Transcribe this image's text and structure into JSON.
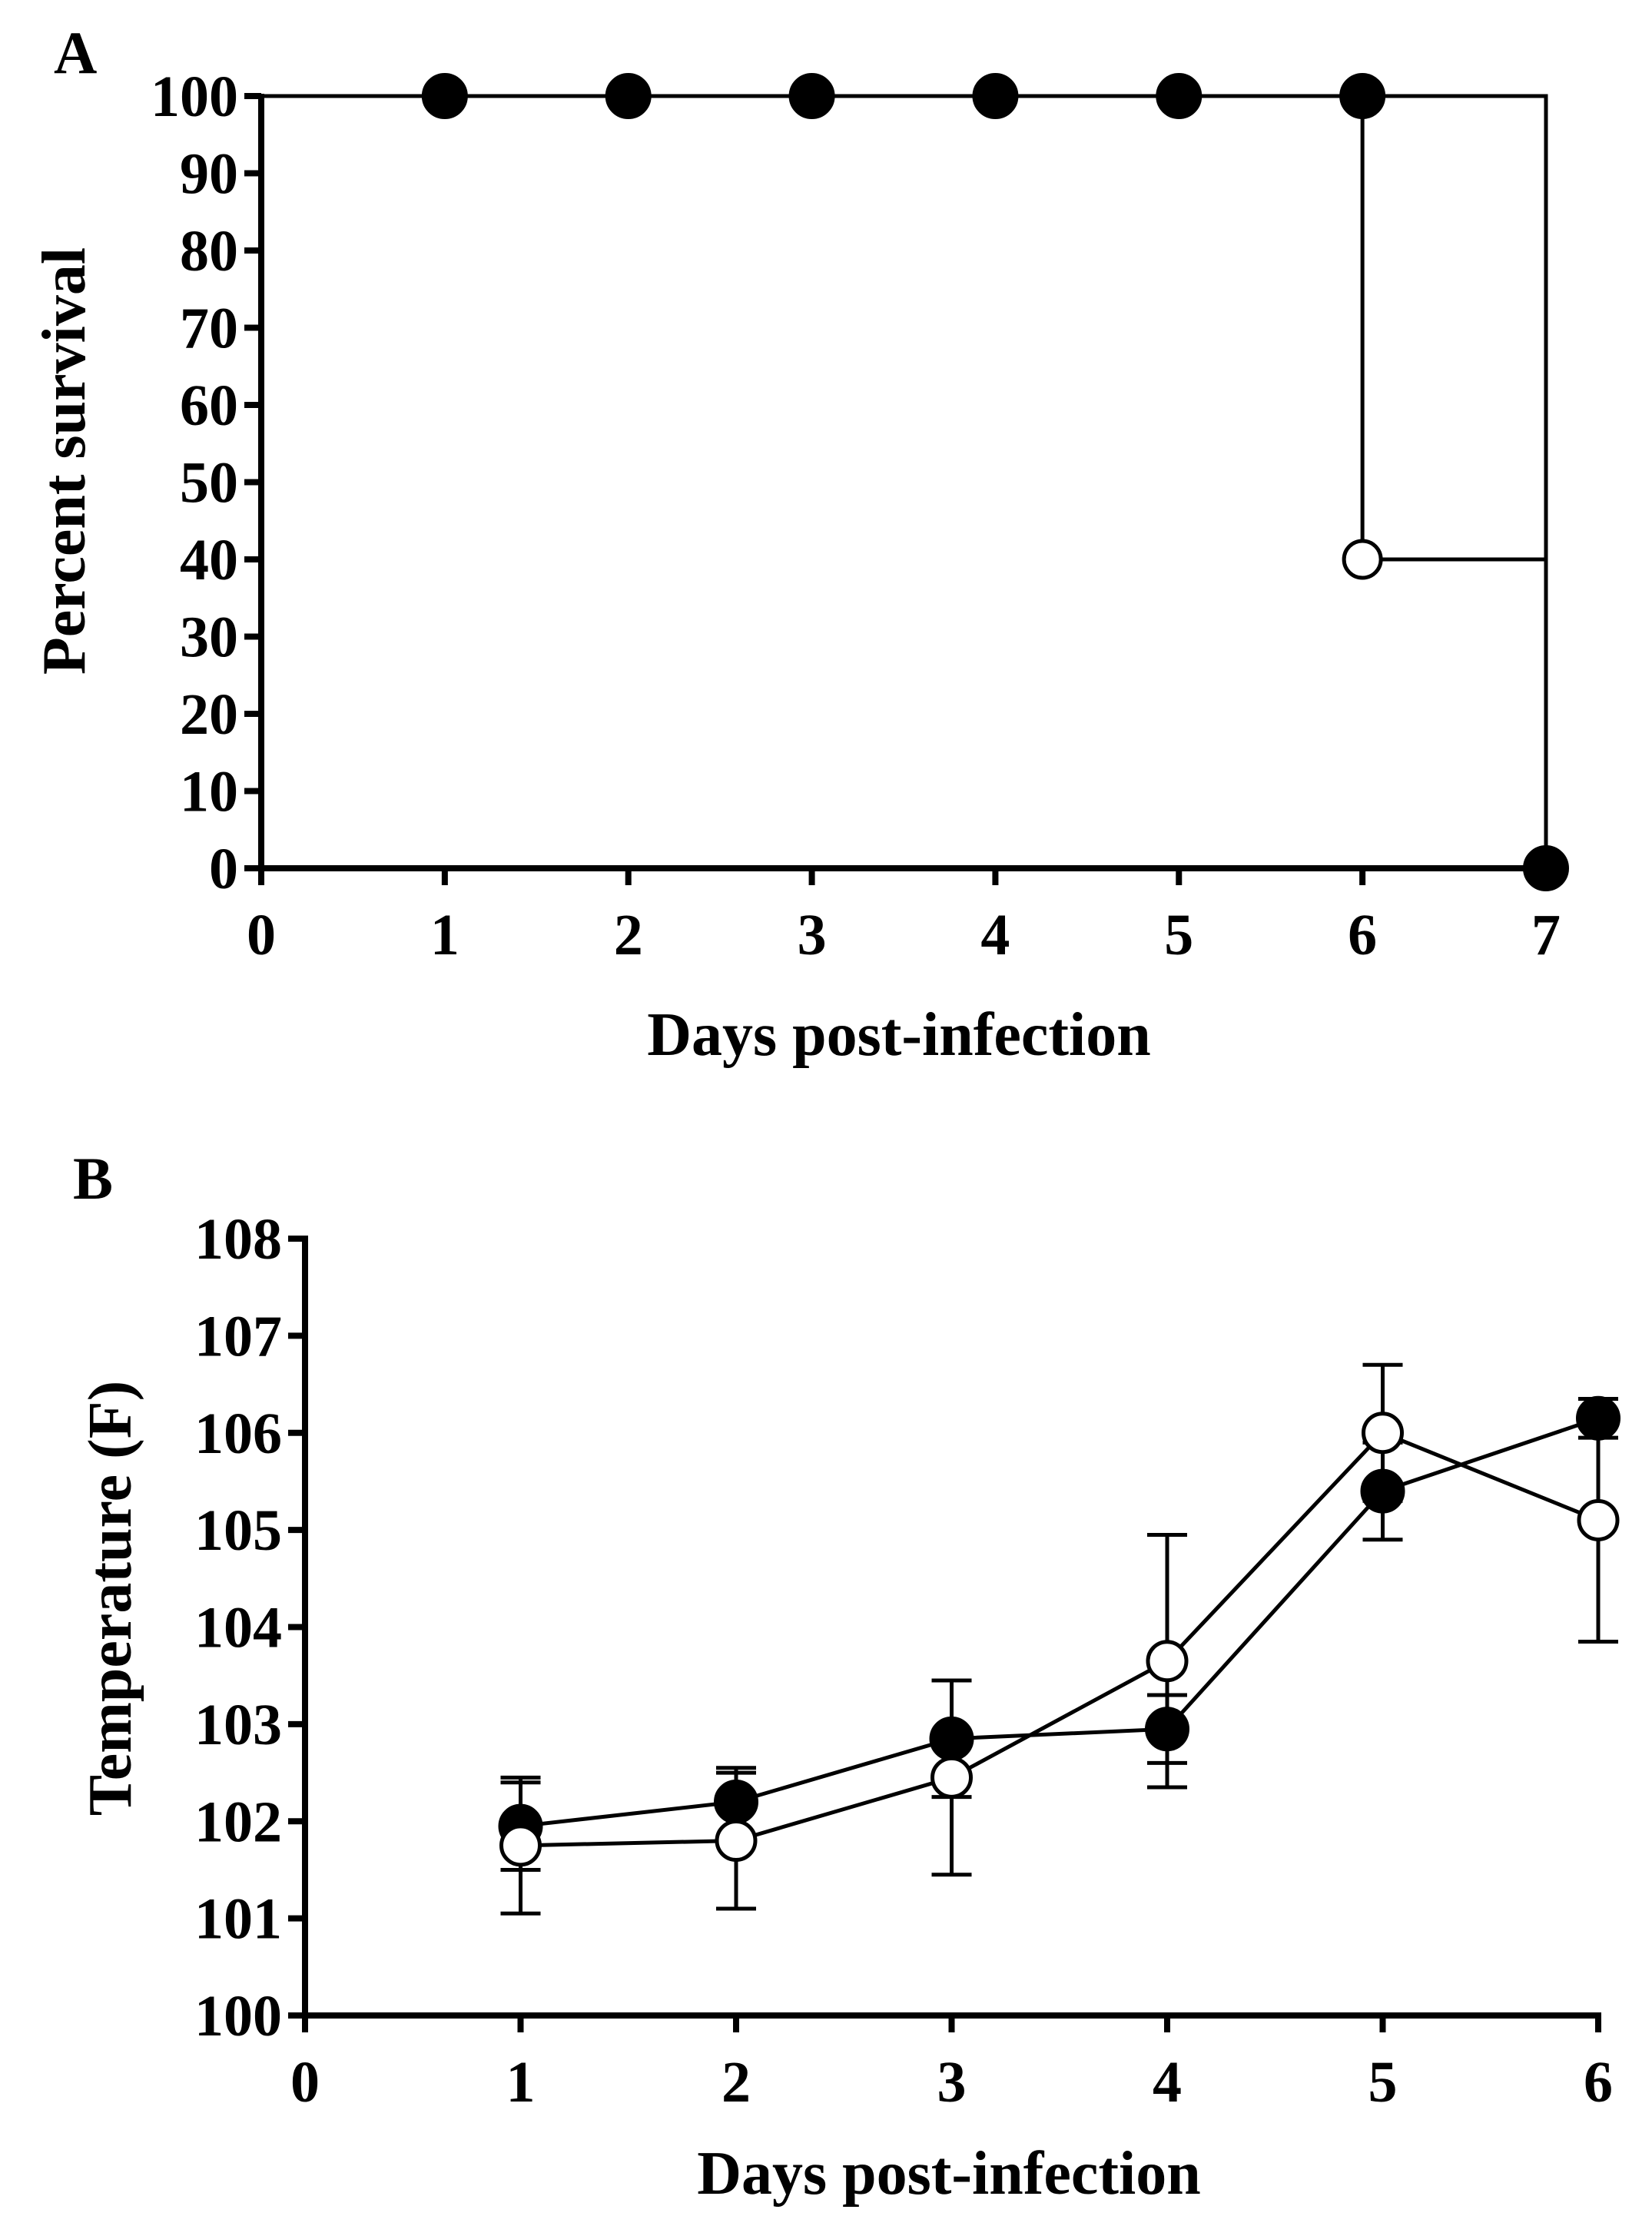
{
  "chart_data": [
    {
      "type": "line",
      "subtype": "survival-step",
      "panel_label": "A",
      "xlabel": "Days post-infection",
      "ylabel": "Percent survival",
      "xlim": [
        0,
        7
      ],
      "ylim": [
        0,
        100
      ],
      "x_ticks": [
        "0",
        "1",
        "2",
        "3",
        "4",
        "5",
        "6",
        "7"
      ],
      "y_ticks": [
        "0",
        "10",
        "20",
        "30",
        "40",
        "50",
        "60",
        "70",
        "80",
        "90",
        "100"
      ],
      "series": [
        {
          "name": "filled circles",
          "marker": "filled",
          "points": [
            {
              "x": 1,
              "y": 100
            },
            {
              "x": 2,
              "y": 100
            },
            {
              "x": 3,
              "y": 100
            },
            {
              "x": 4,
              "y": 100
            },
            {
              "x": 5,
              "y": 100
            },
            {
              "x": 6,
              "y": 100
            },
            {
              "x": 7,
              "y": 0
            }
          ],
          "step": [
            [
              0,
              100
            ],
            [
              7,
              100
            ],
            [
              7,
              0
            ]
          ]
        },
        {
          "name": "open circles",
          "marker": "open",
          "points": [
            {
              "x": 6,
              "y": 40
            }
          ],
          "step": [
            [
              0,
              100
            ],
            [
              6,
              100
            ],
            [
              6,
              40
            ],
            [
              7,
              40
            ],
            [
              7,
              0
            ]
          ]
        }
      ]
    },
    {
      "type": "line",
      "panel_label": "B",
      "xlabel": "Days post-infection",
      "ylabel": "Temperature (F)",
      "xlim": [
        0,
        6
      ],
      "ylim": [
        100,
        108
      ],
      "x_ticks": [
        "0",
        "1",
        "2",
        "3",
        "4",
        "5",
        "6"
      ],
      "y_ticks": [
        "100",
        "101",
        "102",
        "103",
        "104",
        "105",
        "106",
        "107",
        "108"
      ],
      "series": [
        {
          "name": "filled circles",
          "marker": "filled",
          "x": [
            1,
            2,
            3,
            4,
            5,
            6
          ],
          "y": [
            101.95,
            102.2,
            102.85,
            102.95,
            105.4,
            106.15
          ],
          "err": [
            0.45,
            0.35,
            0.6,
            0.35,
            0.5,
            0.2
          ]
        },
        {
          "name": "open circles",
          "marker": "open",
          "x": [
            1,
            2,
            3,
            4,
            5,
            6
          ],
          "y": [
            101.75,
            101.8,
            102.45,
            103.65,
            106.0,
            105.1
          ],
          "err": [
            0.7,
            0.7,
            1.0,
            1.3,
            0.7,
            1.25
          ]
        }
      ]
    }
  ]
}
